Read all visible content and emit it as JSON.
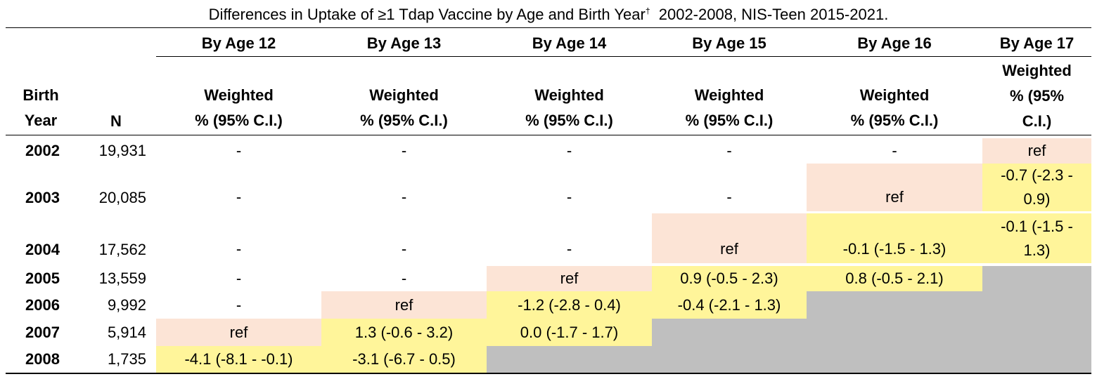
{
  "title": "Differences in Uptake of ≥1 Tdap Vaccine by Age and Birth Year",
  "title_mark": "†",
  "title_tail": "2002-2008, NIS-Teen 2015-2021.",
  "header": {
    "birth_year_line1": "Birth",
    "birth_year_line2": "Year",
    "n": "N",
    "ages": [
      "By Age 12",
      "By Age 13",
      "By Age 14",
      "By Age 15",
      "By Age 16",
      "By Age 17"
    ],
    "sub_line1": "Weighted",
    "sub_line2": "% (95% C.I.)",
    "sub17_line1": "Weighted",
    "sub17_line2": "% (95%",
    "sub17_line3": "C.I.)"
  },
  "rows": [
    {
      "year": "2002",
      "n": "19,931",
      "cells": [
        "-",
        "-",
        "-",
        "-",
        "-",
        "ref"
      ]
    },
    {
      "year": "2003",
      "n": "20,085",
      "cells": [
        "-",
        "-",
        "-",
        "-",
        "ref",
        "-0.7 (-2.3 - 0.9)"
      ]
    },
    {
      "year": "2004",
      "n": "17,562",
      "cells": [
        "-",
        "-",
        "-",
        "ref",
        "-0.1 (-1.5 - 1.3)",
        "-0.1 (-1.5 - 1.3)"
      ]
    },
    {
      "year": "2005",
      "n": "13,559",
      "cells": [
        "-",
        "-",
        "ref",
        "0.9 (-0.5 - 2.3)",
        "0.8 (-0.5 - 2.1)",
        ""
      ]
    },
    {
      "year": "2006",
      "n": "9,992",
      "cells": [
        "-",
        "ref",
        "-1.2 (-2.8 - 0.4)",
        "-0.4 (-2.1 - 1.3)",
        "",
        ""
      ]
    },
    {
      "year": "2007",
      "n": "5,914",
      "cells": [
        "ref",
        "1.3 (-0.6 - 3.2)",
        "0.0 (-1.7 - 1.7)",
        "",
        "",
        ""
      ]
    },
    {
      "year": "2008",
      "n": "1,735",
      "cells": [
        "-4.1 (-8.1 - -0.1)",
        "-3.1 (-6.7 - 0.5)",
        "",
        "",
        "",
        ""
      ]
    }
  ],
  "colors": {
    "ref": "#fce4d6",
    "value": "#fff59a",
    "not_available": "#bfbfbf"
  }
}
